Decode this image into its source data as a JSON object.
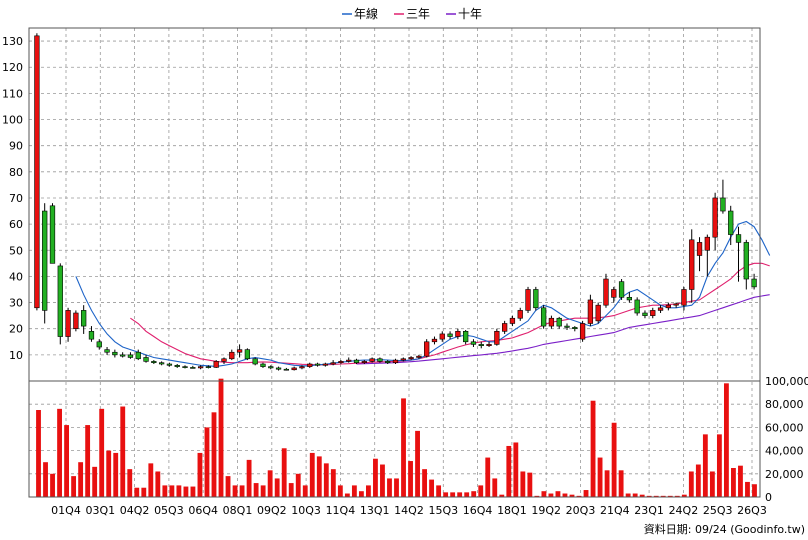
{
  "chart_data": {
    "type": "candlestick",
    "legend": {
      "placement": "top-center",
      "entries": [
        {
          "name": "年線",
          "color": "#1E64C8"
        },
        {
          "name": "三年",
          "color": "#E0206E"
        },
        {
          "name": "十年",
          "color": "#7B1FC8"
        }
      ]
    },
    "price_axis": {
      "ylim": [
        0,
        135
      ],
      "ticks": [
        10,
        20,
        30,
        40,
        50,
        60,
        70,
        80,
        90,
        100,
        110,
        120,
        130
      ],
      "side": "left"
    },
    "volume_axis": {
      "ylim": [
        0,
        100000
      ],
      "ticks": [
        0,
        20000,
        40000,
        60000,
        80000,
        100000
      ],
      "tick_labels": [
        "0",
        "20,000",
        "40,000",
        "60,000",
        "80,000",
        "100,000"
      ],
      "side": "right"
    },
    "x_labels": [
      "01Q4",
      "03Q1",
      "04Q2",
      "05Q3",
      "06Q4",
      "08Q1",
      "09Q2",
      "10Q3",
      "11Q4",
      "13Q1",
      "14Q2",
      "15Q3",
      "16Q4",
      "18Q1",
      "19Q2",
      "20Q3",
      "21Q4",
      "23Q1",
      "24Q2",
      "25Q3",
      "26Q3"
    ],
    "grid": true,
    "colors": {
      "up": "#E81010",
      "down": "#22B022",
      "volume": "#E81010",
      "grid": "#999999"
    },
    "candles": [
      {
        "o": 28,
        "h": 133,
        "l": 27,
        "c": 132
      },
      {
        "o": 65,
        "h": 68,
        "l": 22,
        "c": 27
      },
      {
        "o": 67,
        "h": 68,
        "l": 45,
        "c": 45
      },
      {
        "o": 44,
        "h": 45,
        "l": 14,
        "c": 17
      },
      {
        "o": 17,
        "h": 28,
        "l": 15,
        "c": 27
      },
      {
        "o": 20,
        "h": 27,
        "l": 19,
        "c": 26
      },
      {
        "o": 27,
        "h": 29,
        "l": 18,
        "c": 21
      },
      {
        "o": 19,
        "h": 21,
        "l": 15,
        "c": 16
      },
      {
        "o": 15,
        "h": 16,
        "l": 12,
        "c": 13
      },
      {
        "o": 12,
        "h": 13,
        "l": 10,
        "c": 11
      },
      {
        "o": 11,
        "h": 12,
        "l": 9,
        "c": 10
      },
      {
        "o": 10,
        "h": 11,
        "l": 9,
        "c": 9.5
      },
      {
        "o": 10,
        "h": 11,
        "l": 8.5,
        "c": 9
      },
      {
        "o": 11,
        "h": 12,
        "l": 8,
        "c": 8.5
      },
      {
        "o": 9,
        "h": 10,
        "l": 7,
        "c": 7.5
      },
      {
        "o": 7.5,
        "h": 8,
        "l": 6.5,
        "c": 7
      },
      {
        "o": 7,
        "h": 7.5,
        "l": 6,
        "c": 6.5
      },
      {
        "o": 6.5,
        "h": 7,
        "l": 5.5,
        "c": 6
      },
      {
        "o": 6,
        "h": 6.5,
        "l": 5,
        "c": 5.5
      },
      {
        "o": 5.5,
        "h": 6,
        "l": 4.8,
        "c": 5.2
      },
      {
        "o": 5.2,
        "h": 5.8,
        "l": 4.8,
        "c": 5
      },
      {
        "o": 5,
        "h": 6,
        "l": 4.5,
        "c": 5.5
      },
      {
        "o": 5.5,
        "h": 6,
        "l": 4.8,
        "c": 5.2
      },
      {
        "o": 5.2,
        "h": 8,
        "l": 5,
        "c": 7.5
      },
      {
        "o": 7.5,
        "h": 9,
        "l": 6.5,
        "c": 8.5
      },
      {
        "o": 8.5,
        "h": 12,
        "l": 8,
        "c": 11
      },
      {
        "o": 11,
        "h": 14,
        "l": 9,
        "c": 12
      },
      {
        "o": 12,
        "h": 12.5,
        "l": 8,
        "c": 8.5
      },
      {
        "o": 8.5,
        "h": 9,
        "l": 6,
        "c": 6.5
      },
      {
        "o": 6.5,
        "h": 7,
        "l": 5,
        "c": 5.5
      },
      {
        "o": 5.5,
        "h": 6,
        "l": 4.5,
        "c": 5
      },
      {
        "o": 5,
        "h": 5.5,
        "l": 4,
        "c": 4.5
      },
      {
        "o": 4.5,
        "h": 5,
        "l": 4,
        "c": 4.3
      },
      {
        "o": 4.3,
        "h": 5.5,
        "l": 4,
        "c": 5
      },
      {
        "o": 5,
        "h": 6,
        "l": 4.5,
        "c": 5.5
      },
      {
        "o": 5.5,
        "h": 7,
        "l": 5,
        "c": 6.5
      },
      {
        "o": 6.5,
        "h": 7,
        "l": 5.5,
        "c": 6
      },
      {
        "o": 6,
        "h": 7,
        "l": 5.5,
        "c": 6.5
      },
      {
        "o": 6.5,
        "h": 8,
        "l": 6,
        "c": 7
      },
      {
        "o": 7,
        "h": 8,
        "l": 6.5,
        "c": 7.5
      },
      {
        "o": 7.5,
        "h": 9,
        "l": 7,
        "c": 8
      },
      {
        "o": 8,
        "h": 8.5,
        "l": 6.5,
        "c": 7
      },
      {
        "o": 7,
        "h": 8,
        "l": 6.5,
        "c": 7.5
      },
      {
        "o": 7.5,
        "h": 9,
        "l": 7,
        "c": 8.5
      },
      {
        "o": 8.5,
        "h": 9,
        "l": 7,
        "c": 7.5
      },
      {
        "o": 7.5,
        "h": 8,
        "l": 6.5,
        "c": 7
      },
      {
        "o": 7,
        "h": 8.5,
        "l": 6.5,
        "c": 8
      },
      {
        "o": 8,
        "h": 9,
        "l": 7.5,
        "c": 8.5
      },
      {
        "o": 8.5,
        "h": 9.5,
        "l": 8,
        "c": 9
      },
      {
        "o": 9,
        "h": 10,
        "l": 8.5,
        "c": 9.5
      },
      {
        "o": 9.5,
        "h": 16,
        "l": 9,
        "c": 15
      },
      {
        "o": 15,
        "h": 17,
        "l": 14,
        "c": 16
      },
      {
        "o": 16,
        "h": 19,
        "l": 15,
        "c": 18
      },
      {
        "o": 18,
        "h": 19,
        "l": 16,
        "c": 17
      },
      {
        "o": 17,
        "h": 20,
        "l": 16,
        "c": 19
      },
      {
        "o": 19,
        "h": 19.5,
        "l": 14,
        "c": 15
      },
      {
        "o": 15,
        "h": 16,
        "l": 13,
        "c": 14
      },
      {
        "o": 14,
        "h": 15,
        "l": 12.5,
        "c": 13.5
      },
      {
        "o": 13.5,
        "h": 15,
        "l": 13,
        "c": 14
      },
      {
        "o": 14,
        "h": 20,
        "l": 13.5,
        "c": 19
      },
      {
        "o": 19,
        "h": 23,
        "l": 18,
        "c": 22
      },
      {
        "o": 22,
        "h": 25,
        "l": 21,
        "c": 24
      },
      {
        "o": 24,
        "h": 28,
        "l": 23,
        "c": 27
      },
      {
        "o": 27,
        "h": 36,
        "l": 26,
        "c": 35
      },
      {
        "o": 35,
        "h": 36,
        "l": 27,
        "c": 28
      },
      {
        "o": 28,
        "h": 29,
        "l": 20,
        "c": 21
      },
      {
        "o": 21,
        "h": 25,
        "l": 20,
        "c": 24
      },
      {
        "o": 24,
        "h": 24.5,
        "l": 20,
        "c": 21
      },
      {
        "o": 21,
        "h": 22,
        "l": 19.5,
        "c": 20.5
      },
      {
        "o": 20.5,
        "h": 21,
        "l": 19,
        "c": 20
      },
      {
        "o": 16,
        "h": 23,
        "l": 15,
        "c": 22
      },
      {
        "o": 22,
        "h": 33,
        "l": 21,
        "c": 31
      },
      {
        "o": 23,
        "h": 30,
        "l": 22,
        "c": 29
      },
      {
        "o": 29,
        "h": 41,
        "l": 28,
        "c": 39
      },
      {
        "o": 32,
        "h": 36,
        "l": 30,
        "c": 35
      },
      {
        "o": 38,
        "h": 39,
        "l": 31,
        "c": 32
      },
      {
        "o": 32,
        "h": 34,
        "l": 30,
        "c": 31
      },
      {
        "o": 31,
        "h": 32,
        "l": 25,
        "c": 26
      },
      {
        "o": 26,
        "h": 27,
        "l": 24,
        "c": 25
      },
      {
        "o": 25,
        "h": 28,
        "l": 24,
        "c": 27
      },
      {
        "o": 27,
        "h": 29,
        "l": 26,
        "c": 28
      },
      {
        "o": 28,
        "h": 30,
        "l": 27,
        "c": 29
      },
      {
        "o": 29,
        "h": 30,
        "l": 28,
        "c": 29.5
      },
      {
        "o": 29,
        "h": 36,
        "l": 27,
        "c": 35
      },
      {
        "o": 35,
        "h": 58,
        "l": 30,
        "c": 54
      },
      {
        "o": 48,
        "h": 55,
        "l": 42,
        "c": 53
      },
      {
        "o": 50,
        "h": 56,
        "l": 40,
        "c": 55
      },
      {
        "o": 55,
        "h": 72,
        "l": 50,
        "c": 70
      },
      {
        "o": 70,
        "h": 77,
        "l": 64,
        "c": 65
      },
      {
        "o": 65,
        "h": 67,
        "l": 52,
        "c": 56
      },
      {
        "o": 56,
        "h": 59,
        "l": 38,
        "c": 53
      },
      {
        "o": 53,
        "h": 54,
        "l": 35,
        "c": 39
      },
      {
        "o": 39,
        "h": 41,
        "l": 35,
        "c": 36
      }
    ],
    "ma_year": [
      null,
      null,
      null,
      null,
      null,
      40,
      33,
      27,
      22,
      18,
      15,
      13,
      12,
      11,
      10,
      9,
      8.5,
      8,
      7.5,
      7,
      6.5,
      6,
      5.8,
      5.6,
      6,
      6.5,
      7.5,
      8.5,
      9,
      8.5,
      8,
      7,
      6.5,
      6,
      5.8,
      5.8,
      6.2,
      6.4,
      6.8,
      7.2,
      7.5,
      7.8,
      8,
      8,
      8.2,
      8,
      7.8,
      7.8,
      8,
      8.5,
      10,
      12,
      14,
      16,
      17,
      17.5,
      17,
      16,
      15,
      15,
      17,
      19,
      21,
      23,
      27,
      29,
      28,
      26,
      24,
      23,
      22,
      21,
      22,
      25,
      28,
      32,
      34,
      35,
      33,
      31,
      29,
      28,
      28,
      28.5,
      29,
      32,
      40,
      45,
      49,
      55,
      60,
      61,
      59,
      54,
      48
    ],
    "ma_3year": [
      null,
      null,
      null,
      null,
      null,
      null,
      null,
      null,
      null,
      null,
      null,
      null,
      24,
      22,
      19,
      17,
      15,
      13.5,
      12,
      10.5,
      9.5,
      8.5,
      8,
      7.5,
      7.2,
      7,
      7,
      7,
      7.2,
      7.3,
      7.2,
      7,
      6.8,
      6.6,
      6.4,
      6.3,
      6.2,
      6.2,
      6.3,
      6.5,
      6.6,
      6.8,
      7,
      7.2,
      7.3,
      7.4,
      7.5,
      7.7,
      8,
      8.5,
      9.2,
      10,
      11,
      12,
      13,
      13.8,
      14.5,
      15,
      15.3,
      15.5,
      16,
      16.5,
      17.5,
      18.5,
      20,
      21.5,
      22.5,
      23,
      23.5,
      24,
      24,
      24,
      24.2,
      24.5,
      25,
      26,
      27,
      28,
      28.5,
      29,
      29,
      29.2,
      29.5,
      30,
      30.5,
      31,
      33,
      35,
      37,
      39,
      42,
      44,
      45,
      45,
      44
    ],
    "ma_10year": [
      null,
      null,
      null,
      null,
      null,
      null,
      null,
      null,
      null,
      null,
      null,
      null,
      null,
      null,
      null,
      null,
      null,
      null,
      null,
      null,
      null,
      null,
      null,
      null,
      null,
      null,
      null,
      null,
      null,
      null,
      null,
      null,
      null,
      null,
      null,
      null,
      null,
      null,
      null,
      null,
      null,
      6.5,
      6.6,
      6.7,
      6.8,
      6.9,
      7,
      7.2,
      7.4,
      7.6,
      7.9,
      8.2,
      8.5,
      8.8,
      9.1,
      9.4,
      9.7,
      10,
      10.3,
      10.6,
      11,
      11.5,
      12,
      12.5,
      13.2,
      14,
      14.5,
      15,
      15.5,
      16,
      16.5,
      17,
      17.5,
      18,
      18.5,
      19.5,
      20.5,
      21,
      21.5,
      22,
      22.5,
      23,
      23.5,
      24,
      24.5,
      25,
      26,
      27,
      28,
      29,
      30,
      31,
      32,
      32.5,
      33
    ],
    "volume": [
      75000,
      30000,
      20000,
      76000,
      62000,
      18000,
      30000,
      62000,
      26000,
      76000,
      40000,
      38000,
      78000,
      24000,
      8000,
      8000,
      29000,
      22000,
      10000,
      10000,
      10000,
      9000,
      9000,
      38000,
      60000,
      73000,
      102000,
      18000,
      10000,
      10000,
      32000,
      12000,
      10000,
      23000,
      16000,
      42000,
      12000,
      20000,
      10000,
      38000,
      35000,
      29000,
      24000,
      10000,
      3000,
      10000,
      5000,
      10000,
      33000,
      28000,
      16000,
      16000,
      85000,
      31000,
      57000,
      24000,
      15000,
      10000,
      4000,
      4000,
      4000,
      4000,
      5000,
      10000,
      34000,
      16000,
      2000,
      44000,
      47000,
      22000,
      21000,
      1000,
      5000,
      3000,
      5000,
      3000,
      2000,
      1000,
      6000,
      83000,
      34000,
      23000,
      64000,
      23000,
      3000,
      3000,
      2000,
      1000,
      1000,
      1000,
      1000,
      1000,
      2000,
      22000,
      28000,
      54000,
      22000,
      54000,
      98000,
      25000,
      27000,
      13000,
      11000
    ]
  },
  "footer": {
    "text": "資料日期: 09/24  (Goodinfo.tw)"
  }
}
